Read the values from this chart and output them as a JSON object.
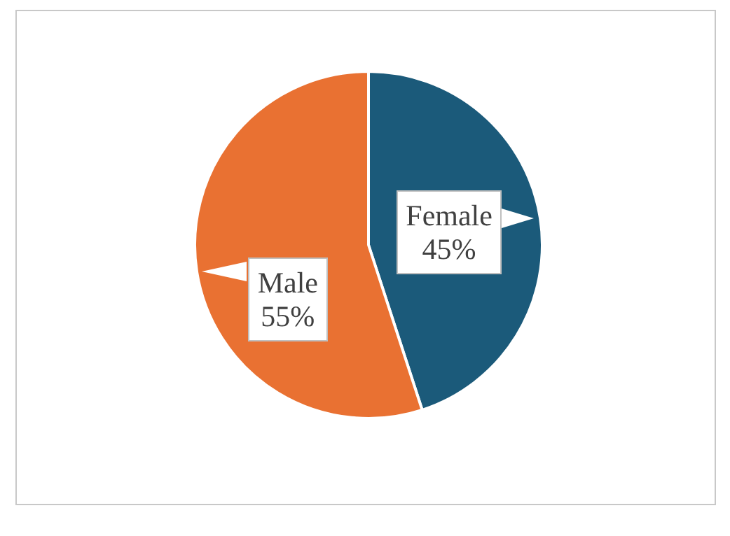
{
  "chart_data": {
    "type": "pie",
    "categories": [
      "Female",
      "Male"
    ],
    "values": [
      45,
      55
    ],
    "colors": [
      "#1b5a7a",
      "#e97132"
    ],
    "value_labels": [
      "45%",
      "55%"
    ],
    "legend": false
  }
}
